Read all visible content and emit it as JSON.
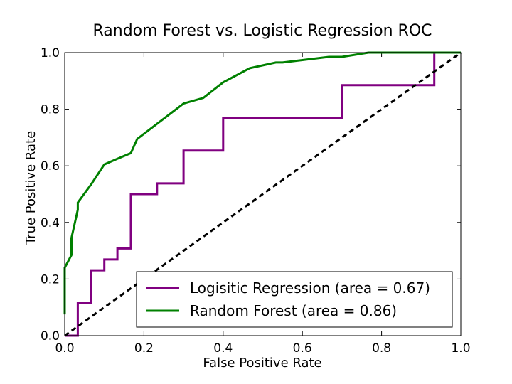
{
  "chart_data": {
    "type": "line",
    "title": "Random Forest vs. Logistic Regression ROC",
    "xlabel": "False Positive Rate",
    "ylabel": "True Positive Rate",
    "xlim": [
      0.0,
      1.0
    ],
    "ylim": [
      0.0,
      1.0
    ],
    "xticks": [
      "0.0",
      "0.2",
      "0.4",
      "0.6",
      "0.8",
      "1.0"
    ],
    "yticks": [
      "0.0",
      "0.2",
      "0.4",
      "0.6",
      "0.8",
      "1.0"
    ],
    "grid": false,
    "legend_position": "lower-right",
    "series": [
      {
        "name": "Logisitic Regression (area = 0.67)",
        "color": "#800080",
        "style": "solid",
        "x": [
          0.0,
          0.033,
          0.033,
          0.067,
          0.067,
          0.1,
          0.1,
          0.133,
          0.133,
          0.167,
          0.167,
          0.233,
          0.233,
          0.3,
          0.3,
          0.4,
          0.4,
          0.7,
          0.7,
          0.933,
          0.933,
          1.0
        ],
        "y": [
          0.0,
          0.0,
          0.115,
          0.115,
          0.231,
          0.231,
          0.269,
          0.269,
          0.308,
          0.308,
          0.5,
          0.5,
          0.538,
          0.538,
          0.654,
          0.654,
          0.769,
          0.769,
          0.885,
          0.885,
          1.0,
          1.0
        ]
      },
      {
        "name": "Random Forest (area = 0.86)",
        "color": "#008000",
        "style": "solid",
        "x": [
          0.0,
          0.0,
          0.017,
          0.017,
          0.033,
          0.033,
          0.067,
          0.1,
          0.133,
          0.167,
          0.183,
          0.3,
          0.35,
          0.4,
          0.467,
          0.533,
          0.55,
          0.667,
          0.7,
          0.767,
          1.0
        ],
        "y": [
          0.075,
          0.24,
          0.285,
          0.345,
          0.445,
          0.47,
          0.535,
          0.605,
          0.625,
          0.645,
          0.695,
          0.82,
          0.84,
          0.895,
          0.945,
          0.965,
          0.965,
          0.985,
          0.985,
          1.0,
          1.0
        ]
      },
      {
        "name": "",
        "color": "#000000",
        "style": "dashed",
        "x": [
          0.0,
          1.0
        ],
        "y": [
          0.0,
          1.0
        ]
      }
    ]
  }
}
